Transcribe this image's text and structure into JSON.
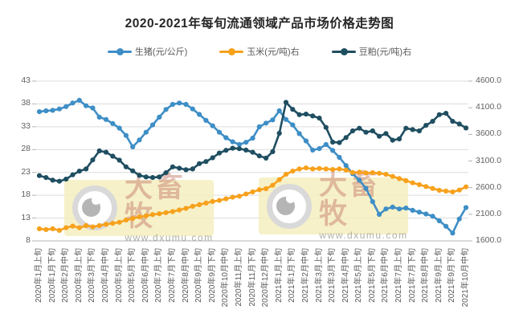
{
  "title": "2020-2021年每旬流通领域产品市场价格走势图",
  "watermark": {
    "brand": "大畜牧",
    "url": "www.dxumu.com"
  },
  "colors": {
    "pig_line": "#3e8ec6",
    "corn_line": "#f7a11c",
    "soybean_meal_line": "#1f4e61",
    "gridline": "#dcdcdc",
    "axis_line": "#b3b3b3",
    "tick_text": "#616161"
  },
  "chart_data": {
    "type": "line",
    "title": "2020-2021年每旬流通领域产品市场价格走势图",
    "n_points": 65,
    "label_step": 2,
    "grid": "horizontal",
    "legend_position": "top",
    "x_labels": [
      "2020年1月上旬",
      "2020年1月下旬",
      "2020年2月中旬",
      "2020年3月上旬",
      "2020年3月下旬",
      "2020年4月中旬",
      "2020年5月上旬",
      "2020年5月下旬",
      "2020年6月中旬",
      "2020年7月上旬",
      "2020年7月下旬",
      "2020年8月中旬",
      "2020年9月上旬",
      "2020年9月下旬",
      "2020年10月中旬",
      "2020年11月上旬",
      "2020年11月下旬",
      "2020年12月中旬",
      "2021年1月上旬",
      "2021年1月下旬",
      "2021年2月中旬",
      "2021年3月上旬",
      "2021年3月下旬",
      "2021年4月中旬",
      "2021年5月上旬",
      "2021年5月下旬",
      "2021年6月中旬",
      "2021年7月上旬",
      "2021年7月下旬",
      "2021年8月中旬",
      "2021年9月上旬",
      "2021年9月下旬",
      "2021年10月中旬"
    ],
    "left_axis": {
      "min": 8,
      "max": 43,
      "tick_labels": [
        "43",
        "38",
        "33",
        "28",
        "23",
        "18",
        "13",
        "8"
      ],
      "ticks": [
        43,
        38,
        33,
        28,
        23,
        18,
        13,
        8
      ]
    },
    "right_axis": {
      "min": 1600,
      "max": 4600,
      "tick_labels": [
        "4600.0",
        "4100.0",
        "3600.0",
        "3100.0",
        "2600.0",
        "2100.0",
        "1600.0"
      ],
      "ticks": [
        4600,
        4100,
        3600,
        3100,
        2600,
        2100,
        1600
      ]
    },
    "series": [
      {
        "name": "生猪(元/公斤)",
        "axis": "left",
        "color": "#3e8ec6",
        "values": [
          36.3,
          36.5,
          36.6,
          36.9,
          37.4,
          38.2,
          38.8,
          37.6,
          37.1,
          35.1,
          34.6,
          33.7,
          32.7,
          31.1,
          28.6,
          30.1,
          31.8,
          33.4,
          35.1,
          36.8,
          37.9,
          38.2,
          37.9,
          36.9,
          35.7,
          34.4,
          33.2,
          31.8,
          30.6,
          29.7,
          29.1,
          29.6,
          30.5,
          33.0,
          33.8,
          34.5,
          36.5,
          34.6,
          33.4,
          31.5,
          29.9,
          27.9,
          28.2,
          29.1,
          27.8,
          26.3,
          24.5,
          22.7,
          21.3,
          19.5,
          16.6,
          13.8,
          15.0,
          15.4,
          15.0,
          15.2,
          14.7,
          14.3,
          13.9,
          13.4,
          12.4,
          11.2,
          9.7,
          12.8,
          15.3
        ]
      },
      {
        "name": "玉米(元/吨)右",
        "axis": "right",
        "color": "#f7a11c",
        "values": [
          1827,
          1812,
          1827,
          1797,
          1847,
          1877,
          1847,
          1887,
          1862,
          1887,
          1910,
          1930,
          1950,
          1990,
          2020,
          2050,
          2070,
          2095,
          2110,
          2130,
          2150,
          2180,
          2210,
          2250,
          2280,
          2310,
          2340,
          2360,
          2390,
          2420,
          2440,
          2480,
          2520,
          2560,
          2580,
          2645,
          2750,
          2850,
          2910,
          2950,
          2970,
          2950,
          2960,
          2950,
          2940,
          2950,
          2930,
          2885,
          2890,
          2875,
          2880,
          2870,
          2850,
          2810,
          2770,
          2730,
          2690,
          2655,
          2620,
          2585,
          2550,
          2535,
          2520,
          2555,
          2615
        ]
      },
      {
        "name": "豆粕(元/吨)右",
        "axis": "right",
        "color": "#1f4e61",
        "values": [
          2825,
          2790,
          2740,
          2720,
          2760,
          2840,
          2910,
          2950,
          3120,
          3290,
          3265,
          3190,
          3115,
          2990,
          2915,
          2830,
          2800,
          2790,
          2800,
          2880,
          2990,
          2965,
          2935,
          2950,
          3050,
          3090,
          3160,
          3250,
          3300,
          3340,
          3330,
          3305,
          3265,
          3195,
          3155,
          3275,
          3620,
          4200,
          4070,
          3970,
          3980,
          3945,
          3905,
          3730,
          3455,
          3445,
          3540,
          3665,
          3715,
          3640,
          3665,
          3565,
          3615,
          3490,
          3515,
          3715,
          3690,
          3665,
          3770,
          3845,
          3970,
          3995,
          3845,
          3795,
          3720
        ]
      }
    ]
  }
}
